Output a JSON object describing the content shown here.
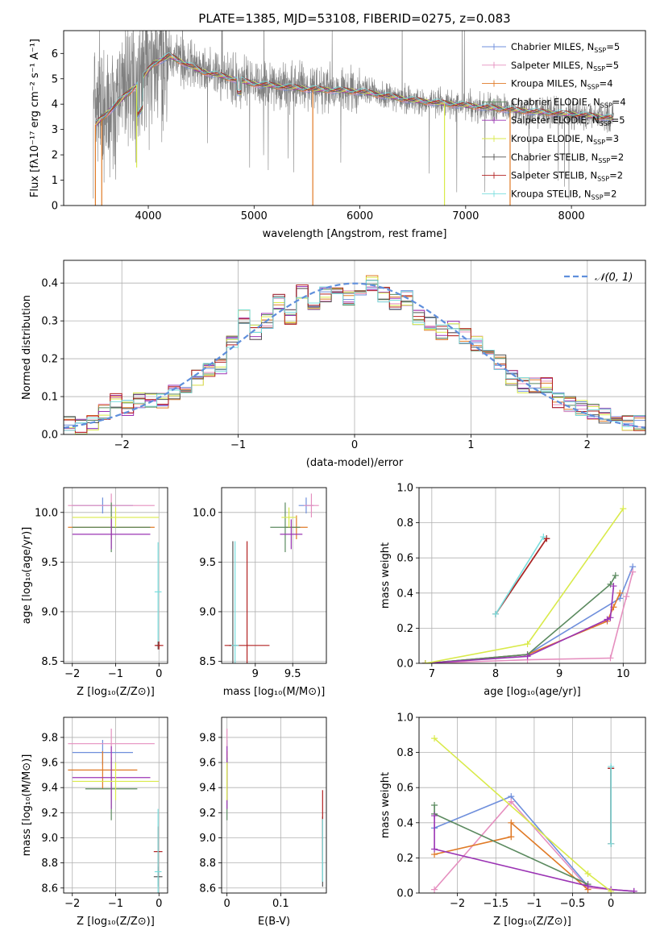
{
  "figure": {
    "title": "PLATE=1385, MJD=53108, FIBERID=0275, z=0.083"
  },
  "palette": {
    "runs": [
      {
        "name": "Chabrier MILES",
        "nssp": "5",
        "color": "#6f8fdc"
      },
      {
        "name": "Salpeter MILES",
        "nssp": "5",
        "color": "#e58fbf"
      },
      {
        "name": "Kroupa MILES",
        "nssp": "4",
        "color": "#e07a26"
      },
      {
        "name": "Chabrier ELODIE",
        "nssp": "4",
        "color": "#5b8a5f"
      },
      {
        "name": "Salpeter ELODIE",
        "nssp": "5",
        "color": "#9b34b4"
      },
      {
        "name": "Kroupa ELODIE",
        "nssp": "3",
        "color": "#d9ea4a"
      },
      {
        "name": "Chabrier STELIB",
        "nssp": "2",
        "color": "#555555"
      },
      {
        "name": "Salpeter STELIB",
        "nssp": "2",
        "color": "#b22222"
      },
      {
        "name": "Kroupa STELIB",
        "nssp": "2",
        "color": "#79dede"
      }
    ],
    "data_color": "#808080",
    "gaussian_color": "#5f8fdc"
  },
  "chart_data": [
    {
      "id": "spectrum",
      "type": "line",
      "title": "PLATE=1385, MJD=53108, FIBERID=0275, z=0.083",
      "xlabel": "wavelength [Angstrom, rest frame]",
      "ylabel": "Flux [fλ10⁻¹⁷ erg cm⁻² s⁻¹ A⁻¹]",
      "xlim": [
        3200,
        8700
      ],
      "ylim": [
        0,
        6.9
      ],
      "xticks": [
        4000,
        5000,
        6000,
        7000,
        8000
      ],
      "yticks": [
        0,
        1,
        2,
        3,
        4,
        5,
        6
      ],
      "grid": false,
      "legend": "right",
      "continuum": [
        {
          "x": 3500,
          "y": 3.2
        },
        {
          "x": 3700,
          "y": 4.0
        },
        {
          "x": 3900,
          "y": 4.8
        },
        {
          "x": 4050,
          "y": 5.6
        },
        {
          "x": 4200,
          "y": 5.9
        },
        {
          "x": 4500,
          "y": 5.3
        },
        {
          "x": 5000,
          "y": 4.8
        },
        {
          "x": 5500,
          "y": 4.6
        },
        {
          "x": 6000,
          "y": 4.5
        },
        {
          "x": 6500,
          "y": 4.15
        },
        {
          "x": 7000,
          "y": 3.95
        },
        {
          "x": 7500,
          "y": 3.75
        },
        {
          "x": 8000,
          "y": 3.6
        },
        {
          "x": 8400,
          "y": 3.45
        }
      ]
    },
    {
      "id": "residuals",
      "type": "histogram",
      "xlabel": "(data-model)/error",
      "ylabel": "Normed distribution",
      "xlim": [
        -2.5,
        2.5
      ],
      "ylim": [
        0,
        0.46
      ],
      "xticks": [
        -2,
        -1,
        0,
        1,
        2
      ],
      "yticks": [
        0.0,
        0.1,
        0.2,
        0.3,
        0.4
      ],
      "grid": true,
      "legend": "top-right",
      "legend_label": "𝒩(0, 1)",
      "bins": {
        "start": -2.5,
        "width": 0.1
      },
      "values": [
        0.03,
        0.02,
        0.03,
        0.06,
        0.09,
        0.07,
        0.09,
        0.09,
        0.09,
        0.11,
        0.13,
        0.15,
        0.17,
        0.18,
        0.24,
        0.31,
        0.27,
        0.3,
        0.35,
        0.31,
        0.38,
        0.35,
        0.37,
        0.38,
        0.36,
        0.36,
        0.4,
        0.37,
        0.35,
        0.36,
        0.31,
        0.29,
        0.27,
        0.28,
        0.26,
        0.24,
        0.21,
        0.19,
        0.15,
        0.13,
        0.13,
        0.13,
        0.09,
        0.08,
        0.07,
        0.06,
        0.05,
        0.05,
        0.03,
        0.03
      ]
    },
    {
      "id": "age_vs_Z",
      "type": "errorbar",
      "xlabel": "Z [log₁₀(Z/Z⊙)]",
      "ylabel": "age  [log₁₀(age/yr)]",
      "xlim": [
        -2.2,
        0.2
      ],
      "ylim": [
        8.48,
        10.25
      ],
      "xticks": [
        -2,
        -1,
        0
      ],
      "yticks": [
        8.5,
        9.0,
        9.5,
        10.0
      ],
      "grid": true,
      "points": [
        {
          "run": 0,
          "x": -1.3,
          "xerr": 0.7,
          "y": 10.07,
          "yerr": 0.08
        },
        {
          "run": 1,
          "x": -1.1,
          "xerr": 1.0,
          "y": 10.07,
          "yerr": 0.12
        },
        {
          "run": 2,
          "x": -1.1,
          "xerr": 1.0,
          "y": 9.85,
          "yerr": 0.12
        },
        {
          "run": 3,
          "x": -1.1,
          "xerr": 0.9,
          "y": 9.85,
          "yerr": 0.25
        },
        {
          "run": 4,
          "x": -1.1,
          "xerr": 0.9,
          "y": 9.78,
          "yerr": 0.15
        },
        {
          "run": 5,
          "x": -1.0,
          "xerr": 1.0,
          "y": 9.95,
          "yerr": 0.1
        },
        {
          "run": 6,
          "x": -0.02,
          "xerr": 0.05,
          "y": 8.66,
          "yerr": 0.04
        },
        {
          "run": 7,
          "x": 0.0,
          "xerr": 0.1,
          "y": 8.66,
          "yerr": 0.04
        },
        {
          "run": 8,
          "x": -0.02,
          "xerr": 0.08,
          "y": 9.2,
          "yerr": 0.5
        }
      ]
    },
    {
      "id": "age_vs_mass",
      "type": "errorbar",
      "xlabel": "mass [log₁₀(M/M⊙)]",
      "ylabel": "",
      "xlim": [
        8.55,
        9.95
      ],
      "ylim": [
        8.48,
        10.25
      ],
      "xticks": [
        9.0,
        9.5
      ],
      "yticks": [
        8.5,
        9.0,
        9.5,
        10.0
      ],
      "grid": true,
      "points": [
        {
          "run": 0,
          "x": 9.68,
          "xerr": 0.1,
          "y": 10.07,
          "yerr": 0.08
        },
        {
          "run": 1,
          "x": 9.75,
          "xerr": 0.1,
          "y": 10.07,
          "yerr": 0.12
        },
        {
          "run": 2,
          "x": 9.55,
          "xerr": 0.15,
          "y": 9.85,
          "yerr": 0.12
        },
        {
          "run": 3,
          "x": 9.4,
          "xerr": 0.2,
          "y": 9.85,
          "yerr": 0.25
        },
        {
          "run": 4,
          "x": 9.48,
          "xerr": 0.15,
          "y": 9.78,
          "yerr": 0.15
        },
        {
          "run": 5,
          "x": 9.45,
          "xerr": 0.1,
          "y": 9.95,
          "yerr": 0.1
        },
        {
          "run": 6,
          "x": 8.7,
          "xerr": 0.05,
          "y": 8.66,
          "yerr": 1.05
        },
        {
          "run": 7,
          "x": 8.89,
          "xerr": 0.3,
          "y": 8.66,
          "yerr": 1.05
        },
        {
          "run": 8,
          "x": 8.73,
          "xerr": 0.05,
          "y": 8.66,
          "yerr": 1.05
        }
      ]
    },
    {
      "id": "weight_vs_age",
      "type": "line",
      "xlabel": "age  [log₁₀(age/yr)]",
      "ylabel": "mass weight",
      "xlim": [
        6.8,
        10.35
      ],
      "ylim": [
        0.0,
        1.0
      ],
      "xticks": [
        7,
        8,
        9,
        10
      ],
      "yticks": [
        0.0,
        0.2,
        0.4,
        0.6,
        0.8,
        1.0
      ],
      "grid": true,
      "series": [
        {
          "run": 0,
          "points": [
            [
              6.9,
              0.0
            ],
            [
              8.5,
              0.05
            ],
            [
              9.95,
              0.37
            ],
            [
              10.15,
              0.55
            ]
          ]
        },
        {
          "run": 1,
          "points": [
            [
              6.9,
              0.0
            ],
            [
              8.5,
              0.02
            ],
            [
              9.8,
              0.03
            ],
            [
              10.05,
              0.38
            ],
            [
              10.15,
              0.52
            ]
          ]
        },
        {
          "run": 2,
          "points": [
            [
              6.9,
              0.0
            ],
            [
              8.5,
              0.05
            ],
            [
              9.75,
              0.24
            ],
            [
              9.85,
              0.32
            ],
            [
              9.95,
              0.4
            ]
          ]
        },
        {
          "run": 3,
          "points": [
            [
              6.9,
              0.0
            ],
            [
              8.5,
              0.05
            ],
            [
              9.8,
              0.45
            ],
            [
              9.88,
              0.5
            ]
          ]
        },
        {
          "run": 4,
          "points": [
            [
              6.9,
              0.0
            ],
            [
              8.5,
              0.04
            ],
            [
              9.75,
              0.25
            ],
            [
              9.8,
              0.26
            ],
            [
              9.85,
              0.44
            ]
          ]
        },
        {
          "run": 5,
          "points": [
            [
              6.9,
              0.0
            ],
            [
              8.5,
              0.11
            ],
            [
              10.0,
              0.88
            ]
          ]
        },
        {
          "run": 6,
          "points": [
            [
              8.0,
              0.28
            ],
            [
              8.8,
              0.71
            ]
          ]
        },
        {
          "run": 7,
          "points": [
            [
              8.0,
              0.28
            ],
            [
              8.8,
              0.71
            ]
          ]
        },
        {
          "run": 8,
          "points": [
            [
              8.0,
              0.28
            ],
            [
              8.75,
              0.72
            ]
          ]
        }
      ]
    },
    {
      "id": "mass_vs_Z",
      "type": "errorbar",
      "xlabel": "Z [log₁₀(Z/Z⊙)]",
      "ylabel": "mass [log₁₀(M/M⊙)]",
      "xlim": [
        -2.2,
        0.2
      ],
      "ylim": [
        8.56,
        9.96
      ],
      "xticks": [
        -2,
        -1,
        0
      ],
      "yticks": [
        8.6,
        8.8,
        9.0,
        9.2,
        9.4,
        9.6,
        9.8
      ],
      "grid": true,
      "points": [
        {
          "run": 0,
          "x": -1.3,
          "xerr": 0.7,
          "y": 9.68,
          "yerr": 0.1
        },
        {
          "run": 1,
          "x": -1.1,
          "xerr": 1.0,
          "y": 9.75,
          "yerr": 0.12
        },
        {
          "run": 2,
          "x": -1.3,
          "xerr": 0.8,
          "y": 9.54,
          "yerr": 0.15
        },
        {
          "run": 3,
          "x": -1.1,
          "xerr": 0.6,
          "y": 9.39,
          "yerr": 0.25
        },
        {
          "run": 4,
          "x": -1.1,
          "xerr": 0.9,
          "y": 9.48,
          "yerr": 0.25
        },
        {
          "run": 5,
          "x": -1.0,
          "xerr": 1.0,
          "y": 9.45,
          "yerr": 0.15
        },
        {
          "run": 6,
          "x": -0.02,
          "xerr": 0.1,
          "y": 8.69,
          "yerr": 0.08
        },
        {
          "run": 7,
          "x": -0.02,
          "xerr": 0.1,
          "y": 8.89,
          "yerr": 0.2
        },
        {
          "run": 8,
          "x": -0.02,
          "xerr": 0.08,
          "y": 8.73,
          "yerr": 0.5
        }
      ]
    },
    {
      "id": "mass_vs_ebv",
      "type": "errorbar",
      "xlabel": "E(B-V)",
      "ylabel": "",
      "xlim": [
        -0.01,
        0.185
      ],
      "ylim": [
        8.56,
        9.96
      ],
      "xticks": [
        0.0,
        0.1
      ],
      "yticks": [
        8.6,
        8.8,
        9.0,
        9.2,
        9.4,
        9.6,
        9.8
      ],
      "grid": true,
      "points": [
        {
          "run": 0,
          "x": 0.0,
          "xerr": 0.0,
          "y": 9.68,
          "yerr": 0.1
        },
        {
          "run": 1,
          "x": 0.0,
          "xerr": 0.0,
          "y": 9.75,
          "yerr": 0.12
        },
        {
          "run": 2,
          "x": 0.0,
          "xerr": 0.0,
          "y": 9.54,
          "yerr": 0.15
        },
        {
          "run": 3,
          "x": 0.0,
          "xerr": 0.0,
          "y": 9.39,
          "yerr": 0.25
        },
        {
          "run": 4,
          "x": 0.0,
          "xerr": 0.0,
          "y": 9.48,
          "yerr": 0.25
        },
        {
          "run": 5,
          "x": 0.0,
          "xerr": 0.0,
          "y": 9.45,
          "yerr": 0.15
        },
        {
          "run": 6,
          "x": 0.178,
          "xerr": 0.0,
          "y": 8.89,
          "yerr": 0.28
        },
        {
          "run": 7,
          "x": 0.178,
          "xerr": 0.0,
          "y": 9.1,
          "yerr": 0.28
        },
        {
          "run": 8,
          "x": 0.178,
          "xerr": 0.0,
          "y": 8.9,
          "yerr": 0.25
        }
      ]
    },
    {
      "id": "weight_vs_Z",
      "type": "line",
      "xlabel": "Z [log₁₀(Z/Z⊙)]",
      "ylabel": "mass weight",
      "xlim": [
        -2.5,
        0.45
      ],
      "ylim": [
        0.0,
        1.0
      ],
      "xticks": [
        -2.0,
        -1.5,
        -1.0,
        -0.5,
        0.0
      ],
      "yticks": [
        0.0,
        0.2,
        0.4,
        0.6,
        0.8,
        1.0
      ],
      "grid": true,
      "series": [
        {
          "run": 0,
          "points": [
            [
              -2.3,
              0.37
            ],
            [
              -1.3,
              0.55
            ],
            [
              -0.3,
              0.04
            ],
            [
              0.0,
              0.02
            ],
            [
              0.3,
              0.01
            ]
          ]
        },
        {
          "run": 1,
          "points": [
            [
              -2.3,
              0.02
            ],
            [
              -1.3,
              0.52
            ],
            [
              -0.3,
              0.03
            ],
            [
              0.0,
              0.02
            ],
            [
              0.3,
              0.01
            ]
          ]
        },
        {
          "run": 2,
          "points": [
            [
              -2.3,
              0.22
            ],
            [
              -1.3,
              0.32
            ],
            [
              -1.3,
              0.4
            ],
            [
              -0.3,
              0.02
            ]
          ]
        },
        {
          "run": 3,
          "points": [
            [
              -2.3,
              0.5
            ],
            [
              -2.3,
              0.45
            ],
            [
              -0.3,
              0.05
            ]
          ]
        },
        {
          "run": 4,
          "points": [
            [
              -2.3,
              0.44
            ],
            [
              -2.3,
              0.25
            ],
            [
              -0.3,
              0.04
            ],
            [
              0.0,
              0.02
            ],
            [
              0.3,
              0.01
            ]
          ]
        },
        {
          "run": 5,
          "points": [
            [
              -2.3,
              0.88
            ],
            [
              -0.3,
              0.11
            ],
            [
              0.0,
              0.01
            ]
          ]
        },
        {
          "run": 6,
          "points": [
            [
              0.0,
              0.28
            ],
            [
              0.0,
              0.71
            ]
          ]
        },
        {
          "run": 7,
          "points": [
            [
              0.0,
              0.28
            ],
            [
              0.0,
              0.71
            ]
          ]
        },
        {
          "run": 8,
          "points": [
            [
              0.0,
              0.28
            ],
            [
              0.0,
              0.72
            ]
          ]
        }
      ]
    }
  ]
}
